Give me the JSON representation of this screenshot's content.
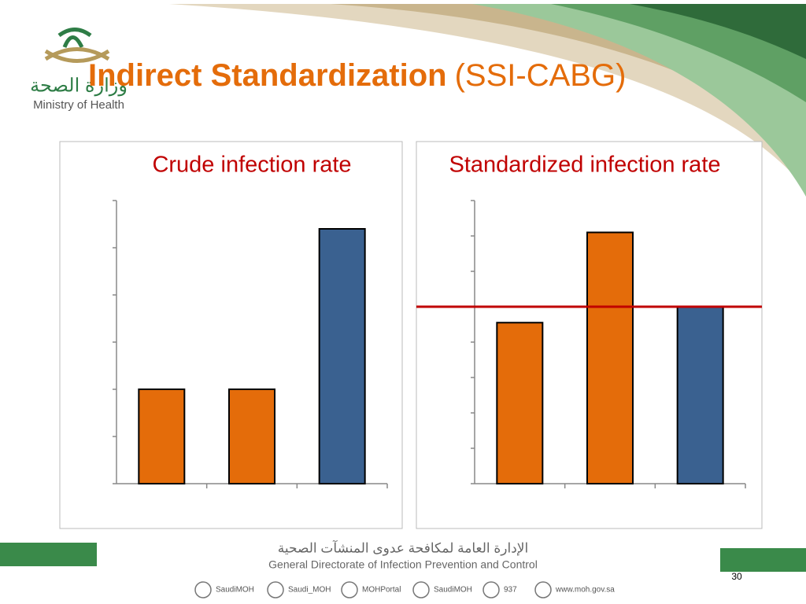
{
  "header": {
    "title_bold": "Indirect Standardization",
    "title_rest": "(SSI-CABG)",
    "logo_arabic": "وزارة الصحة",
    "logo_english": "Ministry of Health"
  },
  "chart_data": [
    {
      "type": "bar",
      "title": "Crude infection rate",
      "categories": [
        null,
        null,
        null
      ],
      "values": [
        2,
        2,
        5.4
      ],
      "colors": [
        "#e46c0a",
        "#e46c0a",
        "#3a6190"
      ],
      "ylim": [
        0,
        6
      ],
      "yticks": [
        0,
        1,
        2,
        3,
        4,
        5,
        6
      ]
    },
    {
      "type": "bar",
      "title": "Standardized infection rate",
      "categories": [
        null,
        null,
        null
      ],
      "values": [
        4.55,
        7.1,
        5
      ],
      "colors": [
        "#e46c0a",
        "#e46c0a",
        "#3a6190"
      ],
      "ylim": [
        0,
        8
      ],
      "yticks": [
        0,
        1,
        2,
        3,
        4,
        5,
        6,
        7,
        8
      ],
      "reference_line": 5,
      "reference_color": "#c00000"
    }
  ],
  "footer": {
    "arabic": "الإدارة العامة لمكافحة عدوى المنشآت الصحية",
    "english": "General Directorate of Infection Prevention and Control",
    "social": [
      "SaudiMOH",
      "Saudi_MOH",
      "MOHPortal",
      "SaudiMOH",
      "937",
      "www.moh.gov.sa"
    ],
    "page_number": "30"
  }
}
